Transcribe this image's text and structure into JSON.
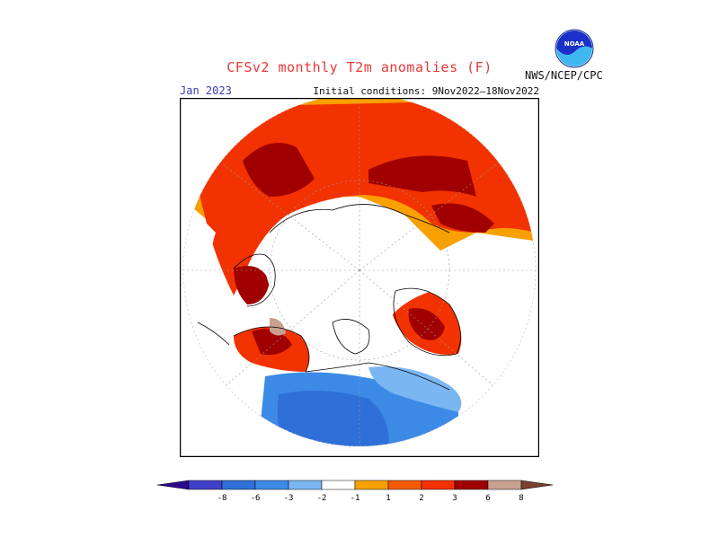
{
  "title": "CFSv2 monthly T2m anomalies (F)",
  "valid_month": "Jan 2023",
  "initial_conditions": "Initial conditions: 9Nov2022—18Nov2022",
  "agency": "NWS/NCEP/CPC",
  "logo": {
    "text": "NOAA",
    "icon": "noaa-logo-icon"
  },
  "colors": {
    "title": "#e8383a",
    "month": "#3a3ab8",
    "ocean_land": "#ffffff",
    "coast": "#000000"
  },
  "legend": {
    "labels": [
      "-8",
      "-6",
      "-3",
      "-2",
      "-1",
      "1",
      "2",
      "3",
      "6",
      "8"
    ],
    "bins": [
      {
        "range": "<-8",
        "color": "#2a0a8c"
      },
      {
        "range": "-8,-6",
        "color": "#4040c8"
      },
      {
        "range": "-6,-3",
        "color": "#2f6fd8"
      },
      {
        "range": "-3,-2",
        "color": "#3c8ae6"
      },
      {
        "range": "-2,-1",
        "color": "#7ab6f2"
      },
      {
        "range": "-1,1",
        "color": "#ffffff"
      },
      {
        "range": "1,2",
        "color": "#f8a000"
      },
      {
        "range": "2,3",
        "color": "#f55a00"
      },
      {
        "range": "3,6",
        "color": "#f23200"
      },
      {
        "range": "6,8",
        "color": "#a00000"
      },
      {
        "range": "8,10",
        "color": "#c8a090"
      },
      {
        "range": ">10",
        "color": "#7a4030"
      }
    ]
  },
  "anomaly_regions": [
    {
      "name": "siberia-east",
      "bin": "3,6"
    },
    {
      "name": "siberia-core",
      "bin": "6,8"
    },
    {
      "name": "north-pacific-rim",
      "bin": "1,2"
    },
    {
      "name": "alaska",
      "bin": "3,6"
    },
    {
      "name": "scandinavia",
      "bin": "6,8"
    },
    {
      "name": "greenland-europe",
      "bin": "3,6"
    },
    {
      "name": "north-america",
      "bin": "-3,-2"
    },
    {
      "name": "canada-north",
      "bin": "-2,-1"
    }
  ]
}
